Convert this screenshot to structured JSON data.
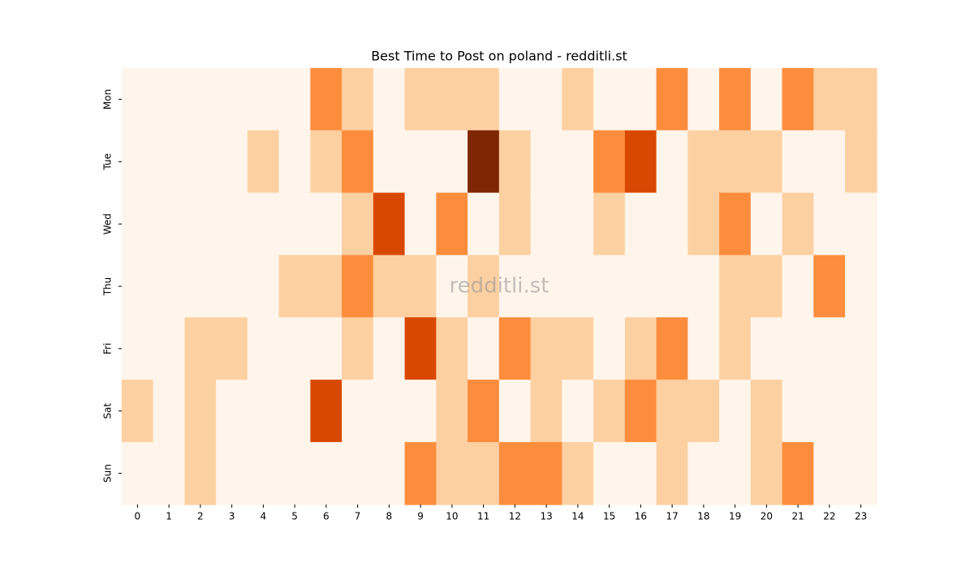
{
  "chart_data": {
    "type": "heatmap",
    "title": "Best Time to Post on poland - redditli.st",
    "watermark": "redditli.st",
    "x": [
      0,
      1,
      2,
      3,
      4,
      5,
      6,
      7,
      8,
      9,
      10,
      11,
      12,
      13,
      14,
      15,
      16,
      17,
      18,
      19,
      20,
      21,
      22,
      23
    ],
    "categories": [
      "Mon",
      "Tue",
      "Wed",
      "Thu",
      "Fri",
      "Sat",
      "Sun"
    ],
    "values": [
      [
        0,
        0,
        0,
        0,
        0,
        0,
        2,
        1,
        0,
        1,
        1,
        1,
        0,
        0,
        1,
        0,
        0,
        2,
        0,
        2,
        0,
        2,
        1,
        1
      ],
      [
        0,
        0,
        0,
        0,
        1,
        0,
        1,
        2,
        0,
        0,
        0,
        4,
        1,
        0,
        0,
        2,
        3,
        0,
        1,
        1,
        1,
        0,
        0,
        1
      ],
      [
        0,
        0,
        0,
        0,
        0,
        0,
        0,
        1,
        3,
        0,
        2,
        0,
        1,
        0,
        0,
        1,
        0,
        0,
        1,
        2,
        0,
        1,
        0,
        0
      ],
      [
        0,
        0,
        0,
        0,
        0,
        1,
        1,
        2,
        1,
        1,
        0,
        1,
        0,
        0,
        0,
        0,
        0,
        0,
        0,
        1,
        1,
        0,
        2,
        0
      ],
      [
        0,
        0,
        1,
        1,
        0,
        0,
        0,
        1,
        0,
        3,
        1,
        0,
        2,
        1,
        1,
        0,
        1,
        2,
        0,
        1,
        0,
        0,
        0,
        0
      ],
      [
        1,
        0,
        1,
        0,
        0,
        0,
        3,
        0,
        0,
        0,
        1,
        2,
        0,
        1,
        0,
        1,
        2,
        1,
        1,
        0,
        1,
        0,
        0,
        0
      ],
      [
        0,
        0,
        1,
        0,
        0,
        0,
        0,
        0,
        0,
        2,
        1,
        1,
        2,
        2,
        1,
        0,
        0,
        1,
        0,
        0,
        1,
        2,
        0,
        0
      ]
    ],
    "vlim": [
      0,
      4
    ],
    "colors": [
      "#fff5eb",
      "#fdd0a2",
      "#fd8d3c",
      "#d94801",
      "#7f2704"
    ]
  }
}
